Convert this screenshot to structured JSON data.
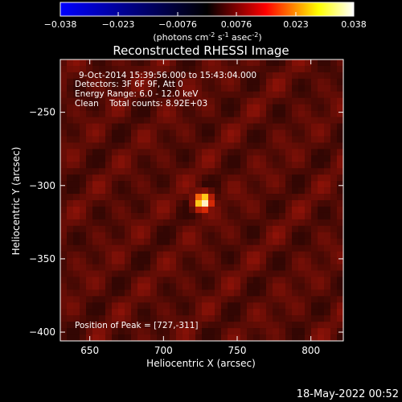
{
  "colors": {
    "background": "#000000",
    "foreground": "#ffffff",
    "colormap": [
      "#0000ff",
      "#000000",
      "#ff0000",
      "#ffff00",
      "#ffffff"
    ]
  },
  "colorbar": {
    "ticks": [
      "-0.038",
      "-0.023",
      "-0.0076",
      "0.0076",
      "0.023",
      "0.038"
    ],
    "range": [
      -0.038,
      0.038
    ],
    "unit_prefix": "(photons cm",
    "unit_sup1": "-2",
    "unit_mid": " s",
    "unit_sup2": "-1",
    "unit_mid2": " asec",
    "unit_sup3": "-2",
    "unit_suffix": ")"
  },
  "info_lines": [
    "9-Oct-2014 15:39:56.000 to 15:43:04.000",
    "Detectors: 3F 6F 9F, Att 0",
    "Energy Range: 6.0 - 12.0 keV",
    "Clean    Total counts: 8.92E+03"
  ],
  "peak_label": "Position of Peak = [727,-311]",
  "footer_date": "18-May-2022 00:52",
  "chart_data": {
    "type": "heatmap",
    "title": "Reconstructed RHESSI Image",
    "xlabel": "Heliocentric X (arcsec)",
    "ylabel": "Heliocentric Y (arcsec)",
    "xlim": [
      630,
      822
    ],
    "ylim": [
      -406,
      -214
    ],
    "xticks": [
      650,
      700,
      750,
      800
    ],
    "yticks": [
      -250,
      -300,
      -350,
      -400
    ],
    "xtick_labels": [
      "650",
      "700",
      "750",
      "800"
    ],
    "ytick_labels": [
      "−250",
      "−300",
      "−350",
      "−400"
    ],
    "peak": {
      "x": 727,
      "y": -311
    }
  }
}
